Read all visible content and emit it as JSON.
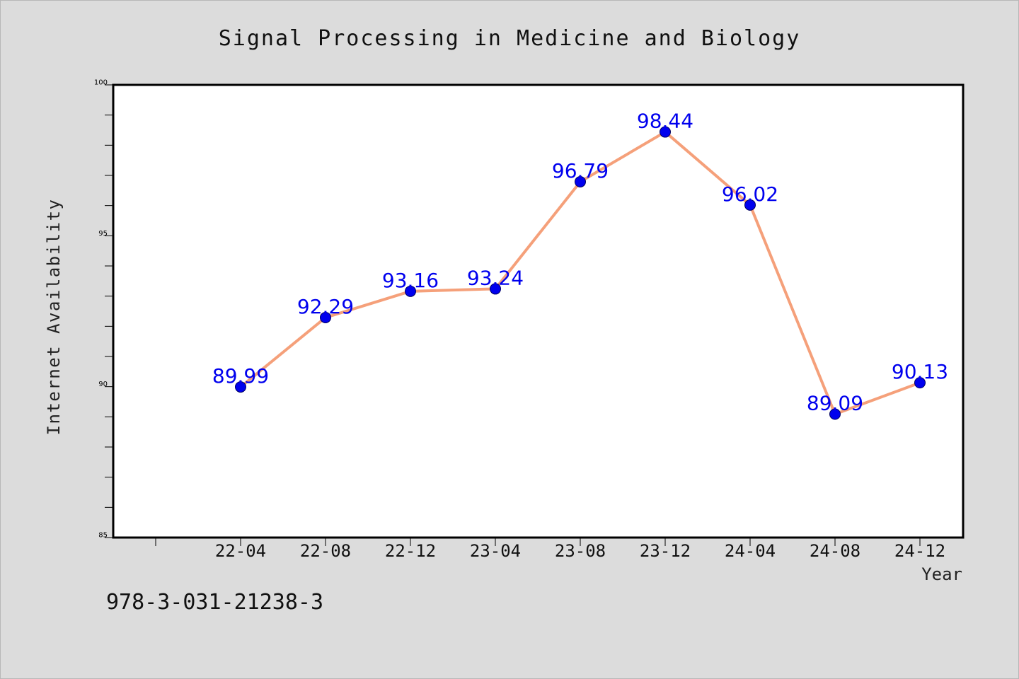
{
  "footer": {
    "isbn": "978-3-031-21238-3"
  },
  "chart_data": {
    "type": "line",
    "title": "Signal Processing in Medicine and Biology",
    "xlabel": "Year",
    "ylabel": "Internet Availability",
    "categories": [
      "22-04",
      "22-08",
      "22-12",
      "23-04",
      "23-08",
      "23-12",
      "24-04",
      "24-08",
      "24-12"
    ],
    "series": [
      {
        "values": [
          89.99,
          92.29,
          93.16,
          93.24,
          96.79,
          98.44,
          96.02,
          89.09,
          90.13
        ],
        "line_color": "#f5a07a",
        "marker_color": "#0000ee",
        "label_color": "#0000ee"
      }
    ],
    "ylim": [
      85,
      100
    ],
    "yticks": [
      85,
      90,
      95,
      100
    ],
    "grid": false,
    "legend": "none"
  }
}
